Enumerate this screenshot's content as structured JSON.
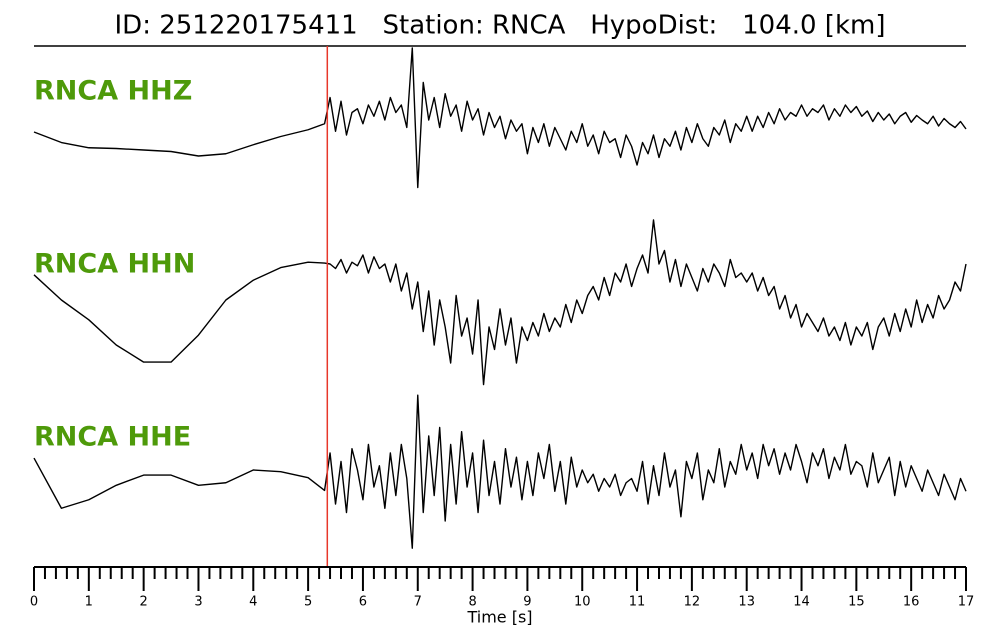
{
  "chart_data": {
    "type": "line",
    "title": "ID: 251220175411   Station: RNCA   HypoDist:   104.0 [km]",
    "xlabel": "Time [s]",
    "xlim": [
      0,
      17
    ],
    "xticks": [
      0,
      1,
      2,
      3,
      4,
      5,
      6,
      7,
      8,
      9,
      10,
      11,
      12,
      13,
      14,
      15,
      16,
      17
    ],
    "xminor": [
      0.2,
      0.4,
      0.6,
      0.8,
      1.2,
      1.4,
      1.6,
      1.8,
      2.2,
      2.4,
      2.6,
      2.8,
      3.2,
      3.4,
      3.6,
      3.8,
      4.2,
      4.4,
      4.6,
      4.8,
      5.2,
      5.4,
      5.6,
      5.8,
      6.2,
      6.4,
      6.6,
      6.8,
      7.2,
      7.4,
      7.6,
      7.8,
      8.2,
      8.4,
      8.6,
      8.8,
      9.2,
      9.4,
      9.6,
      9.8,
      10.2,
      10.4,
      10.6,
      10.8,
      11.2,
      11.4,
      11.6,
      11.8,
      12.2,
      12.4,
      12.6,
      12.8,
      13.2,
      13.4,
      13.6,
      13.8,
      14.2,
      14.4,
      14.6,
      14.8,
      15.2,
      15.4,
      15.6,
      15.8,
      16.2,
      16.4,
      16.6,
      16.8
    ],
    "ylim": [
      -1,
      1
    ],
    "label_color": "#4e9a0a",
    "pick_x": 5.35,
    "pick_color": "#e8372a",
    "x": [
      0,
      0.5,
      1,
      1.5,
      2,
      2.5,
      3,
      3.5,
      4,
      4.5,
      5,
      5.3,
      5.4,
      5.5,
      5.6,
      5.7,
      5.8,
      5.9,
      6.0,
      6.1,
      6.2,
      6.3,
      6.4,
      6.5,
      6.6,
      6.7,
      6.8,
      6.9,
      7.0,
      7.1,
      7.2,
      7.3,
      7.4,
      7.5,
      7.6,
      7.7,
      7.8,
      7.9,
      8.0,
      8.1,
      8.2,
      8.3,
      8.4,
      8.5,
      8.6,
      8.7,
      8.8,
      8.9,
      9.0,
      9.1,
      9.2,
      9.3,
      9.4,
      9.5,
      9.6,
      9.7,
      9.8,
      9.9,
      10.0,
      10.1,
      10.2,
      10.3,
      10.4,
      10.5,
      10.6,
      10.7,
      10.8,
      10.9,
      11.0,
      11.1,
      11.2,
      11.3,
      11.4,
      11.5,
      11.6,
      11.7,
      11.8,
      11.9,
      12.0,
      12.1,
      12.2,
      12.3,
      12.4,
      12.5,
      12.6,
      12.7,
      12.8,
      12.9,
      13.0,
      13.1,
      13.2,
      13.3,
      13.4,
      13.5,
      13.6,
      13.7,
      13.8,
      13.9,
      14.0,
      14.1,
      14.2,
      14.3,
      14.4,
      14.5,
      14.6,
      14.7,
      14.8,
      14.9,
      15.0,
      15.1,
      15.2,
      15.3,
      15.4,
      15.5,
      15.6,
      15.7,
      15.8,
      15.9,
      16.0,
      16.1,
      16.2,
      16.3,
      16.4,
      16.5,
      16.6,
      16.7,
      16.8,
      16.9,
      17.0
    ],
    "series": [
      {
        "name": "RNCA HHZ",
        "color": "#000000",
        "values": [
          -0.16,
          -0.3,
          -0.37,
          -0.38,
          -0.4,
          -0.42,
          -0.48,
          -0.45,
          -0.33,
          -0.22,
          -0.13,
          -0.05,
          0.3,
          -0.15,
          0.25,
          -0.2,
          0.1,
          0.15,
          -0.05,
          0.2,
          0.05,
          0.25,
          0.0,
          0.3,
          0.1,
          0.2,
          -0.1,
          0.96,
          -0.9,
          0.5,
          0.0,
          0.3,
          -0.1,
          0.35,
          0.05,
          0.2,
          -0.15,
          0.25,
          0.0,
          0.15,
          -0.2,
          0.1,
          -0.1,
          0.05,
          -0.25,
          0.0,
          -0.15,
          -0.05,
          -0.45,
          -0.1,
          -0.3,
          -0.05,
          -0.35,
          -0.1,
          -0.25,
          -0.4,
          -0.15,
          -0.3,
          -0.05,
          -0.35,
          -0.2,
          -0.45,
          -0.15,
          -0.3,
          -0.25,
          -0.5,
          -0.2,
          -0.35,
          -0.6,
          -0.3,
          -0.45,
          -0.2,
          -0.5,
          -0.25,
          -0.35,
          -0.15,
          -0.4,
          -0.1,
          -0.3,
          -0.05,
          -0.25,
          -0.35,
          -0.1,
          -0.2,
          0.0,
          -0.3,
          -0.05,
          -0.15,
          0.05,
          -0.15,
          0.05,
          -0.1,
          0.1,
          -0.05,
          0.15,
          0.0,
          0.1,
          0.05,
          0.2,
          0.05,
          0.15,
          0.1,
          0.2,
          0.0,
          0.15,
          0.05,
          0.2,
          0.1,
          0.18,
          0.05,
          0.12,
          -0.02,
          0.1,
          0.0,
          0.08,
          -0.05,
          0.05,
          0.1,
          -0.03,
          0.06,
          0.0,
          -0.05,
          0.05,
          -0.08,
          0.02,
          -0.05,
          -0.1,
          -0.02,
          -0.12
        ]
      },
      {
        "name": "RNCA HHN",
        "color": "#000000",
        "values": [
          0.28,
          0,
          -0.22,
          -0.5,
          -0.69,
          -0.69,
          -0.39,
          0,
          0.22,
          0.36,
          0.42,
          0.41,
          0.4,
          0.35,
          0.45,
          0.3,
          0.42,
          0.38,
          0.5,
          0.3,
          0.48,
          0.35,
          0.4,
          0.2,
          0.4,
          0.1,
          0.3,
          -0.1,
          0.2,
          -0.35,
          0.1,
          -0.5,
          0.0,
          -0.3,
          -0.7,
          0.05,
          -0.4,
          -0.2,
          -0.6,
          0.0,
          -0.94,
          -0.3,
          -0.55,
          -0.1,
          -0.5,
          -0.2,
          -0.7,
          -0.3,
          -0.45,
          -0.25,
          -0.4,
          -0.15,
          -0.35,
          -0.2,
          -0.3,
          -0.05,
          -0.25,
          0.0,
          -0.15,
          0.05,
          0.15,
          0.0,
          0.25,
          0.05,
          0.3,
          0.2,
          0.4,
          0.15,
          0.35,
          0.5,
          0.3,
          0.89,
          0.4,
          0.55,
          0.2,
          0.45,
          0.15,
          0.4,
          0.25,
          0.1,
          0.35,
          0.2,
          0.4,
          0.3,
          0.15,
          0.45,
          0.25,
          0.3,
          0.2,
          0.3,
          0.1,
          0.25,
          0.05,
          0.15,
          -0.1,
          0.05,
          -0.2,
          -0.05,
          -0.3,
          -0.15,
          -0.25,
          -0.35,
          -0.2,
          -0.4,
          -0.3,
          -0.45,
          -0.25,
          -0.5,
          -0.3,
          -0.4,
          -0.25,
          -0.55,
          -0.3,
          -0.2,
          -0.4,
          -0.15,
          -0.35,
          -0.1,
          -0.3,
          0.0,
          -0.25,
          -0.05,
          -0.2,
          0.05,
          -0.1,
          0.0,
          0.2,
          0.1,
          0.4
        ]
      },
      {
        "name": "RNCA HHE",
        "color": "#000000",
        "values": [
          0.14,
          -0.45,
          -0.35,
          -0.18,
          -0.06,
          -0.06,
          -0.18,
          -0.15,
          0,
          -0.02,
          -0.09,
          -0.24,
          0.2,
          -0.4,
          0.1,
          -0.5,
          0.25,
          0.0,
          -0.35,
          0.3,
          -0.2,
          0.05,
          -0.45,
          0.2,
          -0.3,
          0.3,
          -0.1,
          -0.92,
          0.88,
          -0.5,
          0.4,
          -0.3,
          0.5,
          -0.6,
          0.3,
          -0.4,
          0.45,
          -0.2,
          0.2,
          -0.5,
          0.35,
          -0.3,
          0.1,
          -0.4,
          0.25,
          -0.2,
          0.15,
          -0.35,
          0.1,
          -0.3,
          0.2,
          -0.1,
          0.3,
          -0.25,
          0.1,
          -0.4,
          0.15,
          -0.2,
          0.0,
          -0.15,
          -0.05,
          -0.25,
          -0.1,
          -0.2,
          -0.05,
          -0.3,
          -0.15,
          -0.1,
          -0.25,
          0.1,
          -0.4,
          0.05,
          -0.3,
          0.2,
          -0.2,
          0.0,
          -0.55,
          0.1,
          -0.1,
          0.2,
          -0.35,
          0.0,
          -0.15,
          0.25,
          -0.2,
          0.1,
          -0.05,
          0.3,
          0.0,
          0.2,
          -0.1,
          0.3,
          0.05,
          0.25,
          -0.05,
          0.2,
          0.0,
          0.3,
          0.1,
          -0.15,
          0.2,
          0.05,
          0.25,
          -0.1,
          0.15,
          0.0,
          0.3,
          -0.05,
          0.1,
          0.05,
          -0.2,
          0.2,
          -0.15,
          0.0,
          0.15,
          -0.3,
          0.1,
          -0.2,
          0.05,
          -0.1,
          -0.25,
          0.0,
          -0.15,
          -0.3,
          -0.05,
          -0.2,
          -0.35,
          -0.1,
          -0.25
        ]
      }
    ]
  }
}
